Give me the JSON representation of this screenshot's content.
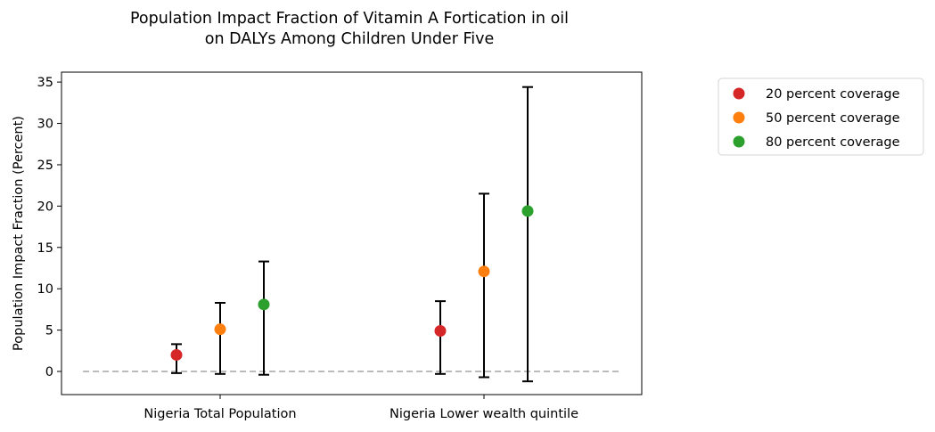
{
  "chart_data": {
    "type": "scatter",
    "title": [
      "Population Impact Fraction of Vitamin A Fortication in oil",
      "on DALYs Among Children Under Five"
    ],
    "xlabel": "",
    "ylabel": "Population Impact Fraction (Percent)",
    "ylim": [
      -2.8,
      36.2
    ],
    "yticks": [
      0,
      5,
      10,
      15,
      20,
      25,
      30,
      35
    ],
    "categories": [
      "Nigeria Total Population",
      "Nigeria Lower wealth quintile"
    ],
    "reference_line": {
      "y": 0,
      "style": "dashed",
      "color": "#bbbbbb"
    },
    "series": [
      {
        "name": "20 percent coverage",
        "color": "#d62728",
        "values": [
          2.0,
          4.9
        ],
        "lower": [
          -0.2,
          -0.3
        ],
        "upper": [
          3.3,
          8.5
        ]
      },
      {
        "name": "50 percent coverage",
        "color": "#ff7f0e",
        "values": [
          5.1,
          12.1
        ],
        "lower": [
          -0.3,
          -0.7
        ],
        "upper": [
          8.3,
          21.5
        ]
      },
      {
        "name": "80 percent coverage",
        "color": "#2ca02c",
        "values": [
          8.1,
          19.4
        ],
        "lower": [
          -0.4,
          -1.2
        ],
        "upper": [
          13.3,
          34.4
        ]
      }
    ],
    "legend_position": "outside-right",
    "grid": false
  }
}
